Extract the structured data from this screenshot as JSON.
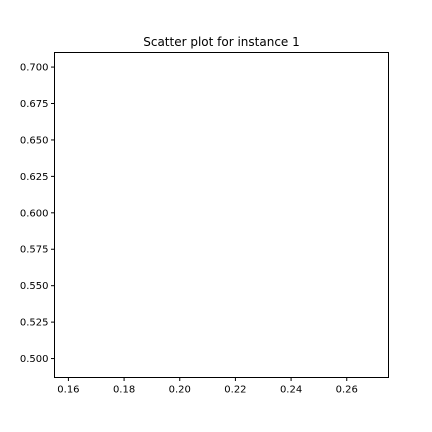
{
  "chart_data": {
    "type": "scatter",
    "title": "Scatter plot for instance 1",
    "xlabel": "",
    "ylabel": "",
    "xlim": [
      0.155,
      0.275
    ],
    "ylim": [
      0.487,
      0.71
    ],
    "x_ticks": [
      {
        "value": 0.16,
        "label": "0.16"
      },
      {
        "value": 0.18,
        "label": "0.18"
      },
      {
        "value": 0.2,
        "label": "0.20"
      },
      {
        "value": 0.22,
        "label": "0.22"
      },
      {
        "value": 0.24,
        "label": "0.24"
      },
      {
        "value": 0.26,
        "label": "0.26"
      }
    ],
    "y_ticks": [
      {
        "value": 0.5,
        "label": "0.500"
      },
      {
        "value": 0.525,
        "label": "0.525"
      },
      {
        "value": 0.55,
        "label": "0.550"
      },
      {
        "value": 0.575,
        "label": "0.575"
      },
      {
        "value": 0.6,
        "label": "0.600"
      },
      {
        "value": 0.625,
        "label": "0.625"
      },
      {
        "value": 0.65,
        "label": "0.650"
      },
      {
        "value": 0.675,
        "label": "0.675"
      },
      {
        "value": 0.7,
        "label": "0.700"
      }
    ],
    "points": [],
    "grid": false,
    "legend": "none"
  }
}
